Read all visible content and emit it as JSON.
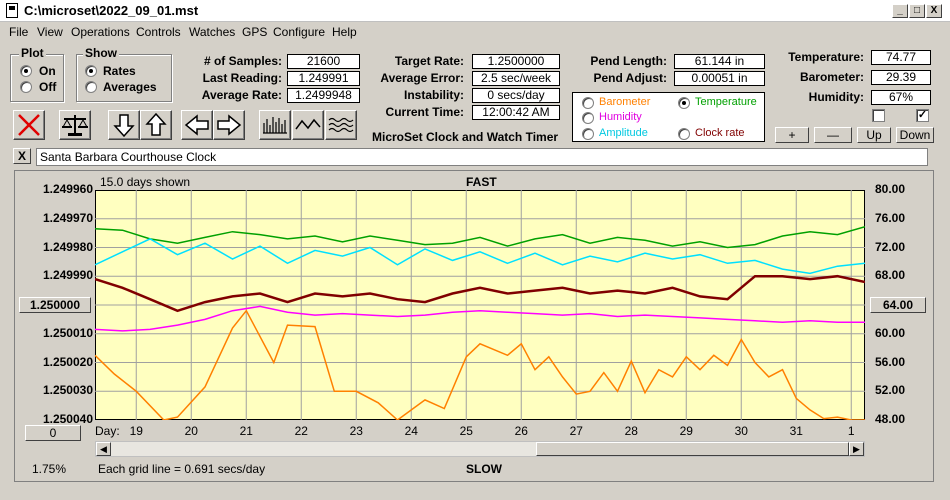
{
  "window": {
    "title": "C:\\microset\\2022_09_01.mst",
    "minimize": "_",
    "maximize": "□",
    "close": "X"
  },
  "menu": [
    "File",
    "View",
    "Operations",
    "Controls",
    "Watches",
    "GPS",
    "Configure",
    "Help"
  ],
  "plot_group": {
    "label": "Plot",
    "on": "On",
    "off": "Off"
  },
  "show_group": {
    "label": "Show",
    "rates": "Rates",
    "averages": "Averages"
  },
  "stats": {
    "samples_label": "# of Samples:",
    "samples": "21600",
    "last_label": "Last Reading:",
    "last": "1.249991",
    "avg_label": "Average Rate:",
    "avg": "1.2499948",
    "target_label": "Target Rate:",
    "target": "1.2500000",
    "avgerr_label": "Average Error:",
    "avgerr": "2.5 sec/week",
    "instab_label": "Instability:",
    "instab": "0 secs/day",
    "time_label": "Current Time:",
    "time": "12:00:42 AM",
    "pendlen_label": "Pend Length:",
    "pendlen": "61.144 in",
    "pendadj_label": "Pend Adjust:",
    "pendadj": "0.00051 in",
    "temp_label": "Temperature:",
    "temp": "74.77",
    "baro_label": "Barometer:",
    "baro": "29.39",
    "hum_label": "Humidity:",
    "hum": "67%"
  },
  "app_name": "MicroSet Clock and Watch Timer",
  "sensor_options": {
    "barometer": "Barometer",
    "temperature": "Temperature",
    "humidity": "Humidity",
    "amplitude": "Amplitude",
    "clock_rate": "Clock rate"
  },
  "sensor_buttons": {
    "plus": "+",
    "minus": "—",
    "up": "Up",
    "down": "Down"
  },
  "close_x": "X",
  "description": "Santa Barbara Courthouse Clock",
  "graph": {
    "days_shown": "15.0 days shown",
    "fast": "FAST",
    "slow": "SLOW",
    "grid_note": "Each grid line = 0.691 secs/day",
    "percent": "1.75%",
    "center_btn": "1.250000",
    "right_btn": "64.00",
    "zero_btn": "0",
    "day_label": "Day:"
  },
  "chart_data": {
    "type": "line",
    "x_label": "Day:",
    "x_ticks": [
      "19",
      "20",
      "21",
      "22",
      "23",
      "24",
      "25",
      "26",
      "27",
      "28",
      "29",
      "30",
      "31",
      "1"
    ],
    "y_left_ticks": [
      "1.249960",
      "1.249970",
      "1.249980",
      "1.249990",
      "1.250000",
      "1.250010",
      "1.250020",
      "1.250030",
      "1.250040"
    ],
    "y_right_ticks": [
      "80.00",
      "76.00",
      "72.00",
      "68.00",
      "64.00",
      "60.00",
      "56.00",
      "52.00",
      "48.00"
    ],
    "y_left_range": [
      1.24996,
      1.25004
    ],
    "y_right_range": [
      48,
      80
    ],
    "x_range": [
      18.25,
      32.25
    ],
    "grid": true,
    "colors": {
      "rate": "#800000",
      "temperature": "#00a000",
      "humidity": "#ff00ff",
      "barometer": "#ff8000",
      "amplitude": "#00e0ff",
      "background": "#ffffc0"
    },
    "series": [
      {
        "key": "temperature",
        "axis": "right",
        "x": [
          18.25,
          18.75,
          19.25,
          19.75,
          20.25,
          20.75,
          21.25,
          21.75,
          22.25,
          22.75,
          23.25,
          23.75,
          24.25,
          24.75,
          25.25,
          25.75,
          26.25,
          26.75,
          27.25,
          27.75,
          28.25,
          28.75,
          29.25,
          29.75,
          30.25,
          30.75,
          31.25,
          31.75,
          32.25
        ],
        "y": [
          74.6,
          74.4,
          73.2,
          72.6,
          73.4,
          74.2,
          73.8,
          73.2,
          73.6,
          72.8,
          73.6,
          73.0,
          72.4,
          72.6,
          73.4,
          72.2,
          73.2,
          73.8,
          72.6,
          73.4,
          73.0,
          72.2,
          72.8,
          72.0,
          72.4,
          73.6,
          74.2,
          73.8,
          74.9
        ]
      },
      {
        "key": "amplitude",
        "axis": "right",
        "x": [
          18.25,
          18.75,
          19.25,
          19.75,
          20.25,
          20.75,
          21.25,
          21.75,
          22.25,
          22.75,
          23.25,
          23.75,
          24.25,
          24.75,
          25.25,
          25.75,
          26.25,
          26.75,
          27.25,
          27.75,
          28.25,
          28.75,
          29.25,
          29.75,
          30.25,
          30.75,
          31.25,
          31.75,
          32.25
        ],
        "y": [
          69.6,
          71.4,
          73.2,
          71.0,
          72.6,
          70.4,
          72.2,
          69.8,
          71.6,
          70.8,
          72.0,
          69.6,
          71.8,
          70.2,
          71.4,
          69.8,
          71.2,
          69.6,
          70.8,
          70.0,
          71.2,
          70.4,
          71.0,
          69.8,
          70.2,
          69.0,
          68.4,
          69.4,
          69.8
        ]
      },
      {
        "key": "rate",
        "axis": "left",
        "x": [
          18.25,
          18.75,
          19.25,
          19.75,
          20.25,
          20.75,
          21.25,
          21.75,
          22.25,
          22.75,
          23.25,
          23.75,
          24.25,
          24.75,
          25.25,
          25.75,
          26.25,
          26.75,
          27.25,
          27.75,
          28.25,
          28.75,
          29.25,
          29.75,
          30.25,
          30.75,
          31.25,
          31.75,
          32.25
        ],
        "y": [
          1.249991,
          1.249994,
          1.249998,
          1.250002,
          1.249999,
          1.249997,
          1.249996,
          1.249999,
          1.249996,
          1.249997,
          1.249996,
          1.249998,
          1.249999,
          1.249996,
          1.249994,
          1.249996,
          1.249995,
          1.249994,
          1.249996,
          1.249995,
          1.249996,
          1.249994,
          1.249997,
          1.249998,
          1.24999,
          1.24999,
          1.249991,
          1.24999,
          1.249992
        ]
      },
      {
        "key": "humidity",
        "axis": "right",
        "x": [
          18.25,
          18.75,
          19.25,
          19.75,
          20.25,
          20.75,
          21.25,
          21.75,
          22.25,
          22.75,
          23.25,
          23.75,
          24.25,
          24.75,
          25.25,
          25.75,
          26.25,
          26.75,
          27.25,
          27.75,
          28.25,
          28.75,
          29.25,
          29.75,
          30.25,
          30.75,
          31.25,
          31.75,
          32.25
        ],
        "y": [
          60.6,
          60.4,
          60.6,
          61.2,
          62.0,
          63.2,
          63.8,
          63.0,
          62.6,
          62.8,
          62.6,
          62.4,
          62.6,
          63.0,
          63.2,
          63.0,
          62.8,
          62.6,
          62.8,
          62.4,
          62.6,
          62.4,
          62.2,
          62.0,
          61.8,
          61.6,
          61.8,
          61.6,
          61.6
        ]
      },
      {
        "key": "barometer",
        "axis": "right",
        "x": [
          18.25,
          18.6,
          19.0,
          19.5,
          19.75,
          20.25,
          20.75,
          21.0,
          21.5,
          21.75,
          22.25,
          22.6,
          23.0,
          23.4,
          23.75,
          24.25,
          24.6,
          25.0,
          25.25,
          25.75,
          26.0,
          26.25,
          26.5,
          26.75,
          27.0,
          27.25,
          27.5,
          27.75,
          28.0,
          28.25,
          28.5,
          28.75,
          29.0,
          29.25,
          29.5,
          29.75,
          30.0,
          30.25,
          30.5,
          30.75,
          31.0,
          31.25,
          31.5,
          31.75,
          32.0,
          32.25
        ],
        "y": [
          57.0,
          54.4,
          52.0,
          48.0,
          48.4,
          52.6,
          60.8,
          63.2,
          56.0,
          61.2,
          61.0,
          52.0,
          52.0,
          50.4,
          48.0,
          50.8,
          49.6,
          56.8,
          58.6,
          57.0,
          58.6,
          55.0,
          56.8,
          54.0,
          51.6,
          52.0,
          54.6,
          52.0,
          56.2,
          51.8,
          55.0,
          54.0,
          56.8,
          55.0,
          57.0,
          55.6,
          59.2,
          56.0,
          54.0,
          55.0,
          51.0,
          49.4,
          48.2,
          48.4,
          48.0,
          48.0
        ]
      }
    ]
  }
}
